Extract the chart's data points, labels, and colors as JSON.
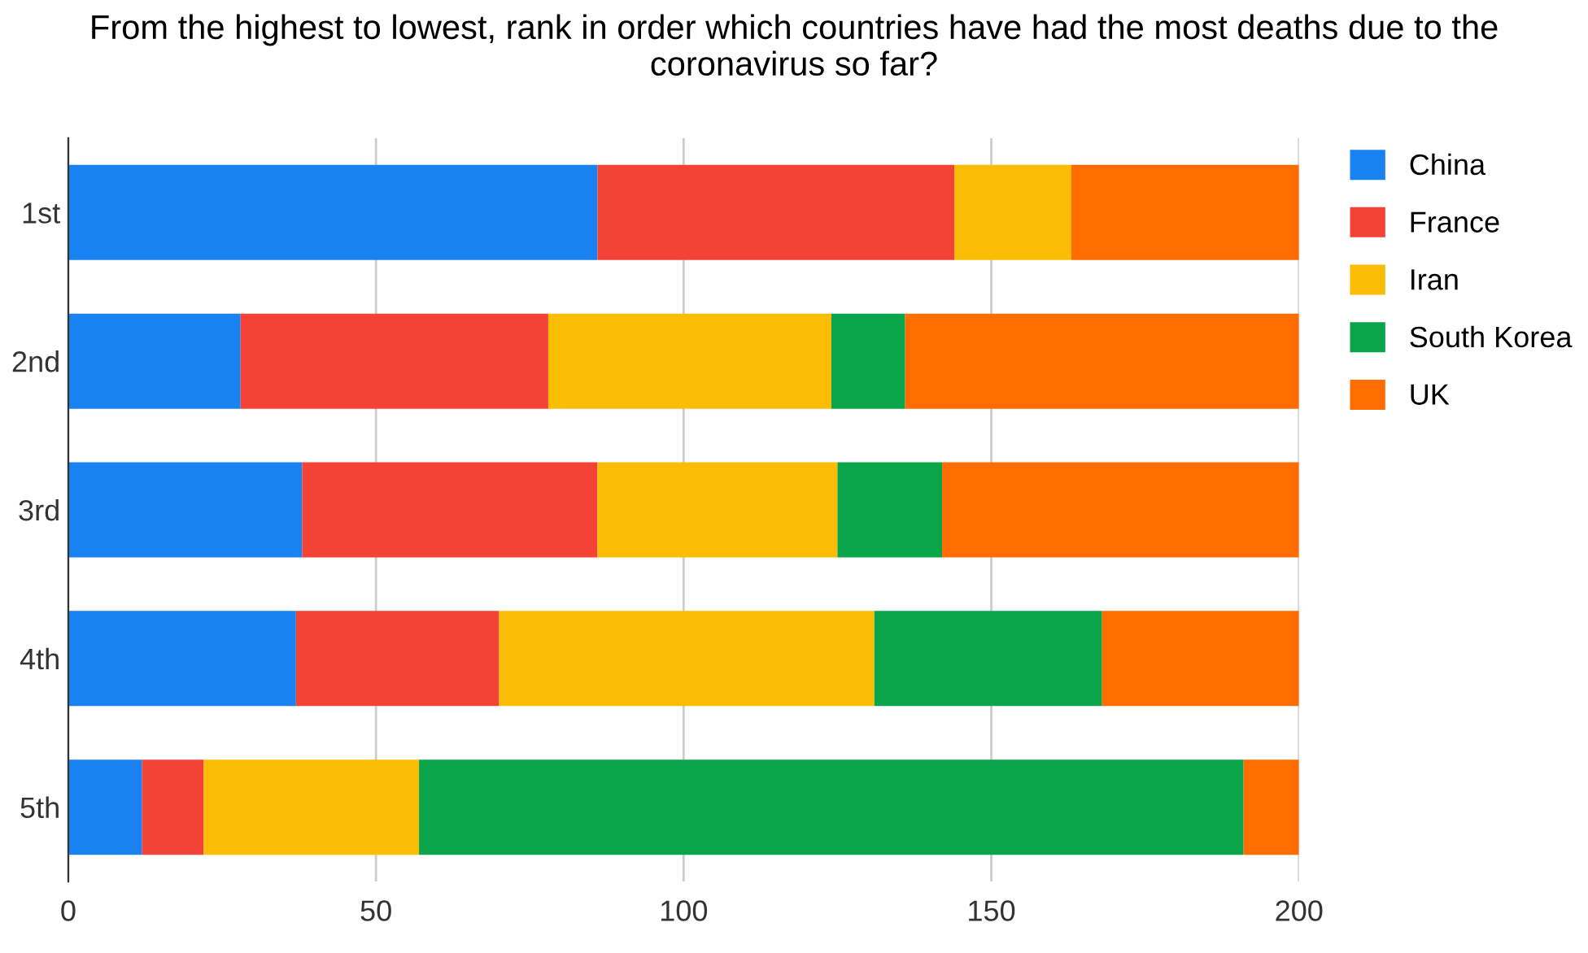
{
  "chart_data": {
    "type": "bar",
    "orientation": "horizontal",
    "stacked": true,
    "title": "From the highest to lowest, rank in order which countries have had the most deaths due to the coronavirus so far?",
    "categories": [
      "1st",
      "2nd",
      "3rd",
      "4th",
      "5th"
    ],
    "series": [
      {
        "name": "China",
        "color": "#1a82f0",
        "values": [
          86,
          28,
          38,
          37,
          12
        ]
      },
      {
        "name": "France",
        "color": "#f44336",
        "values": [
          58,
          50,
          48,
          33,
          10
        ]
      },
      {
        "name": "Iran",
        "color": "#fbbc04",
        "values": [
          19,
          46,
          39,
          61,
          35
        ]
      },
      {
        "name": "South Korea",
        "color": "#0aa44a",
        "values": [
          0,
          12,
          17,
          37,
          134
        ]
      },
      {
        "name": "UK",
        "color": "#ff6d01",
        "values": [
          37,
          64,
          58,
          32,
          9
        ]
      }
    ],
    "xlim": [
      0,
      200
    ],
    "xticks": [
      0,
      50,
      100,
      150,
      200
    ],
    "grid": "x",
    "legend": "top right"
  }
}
